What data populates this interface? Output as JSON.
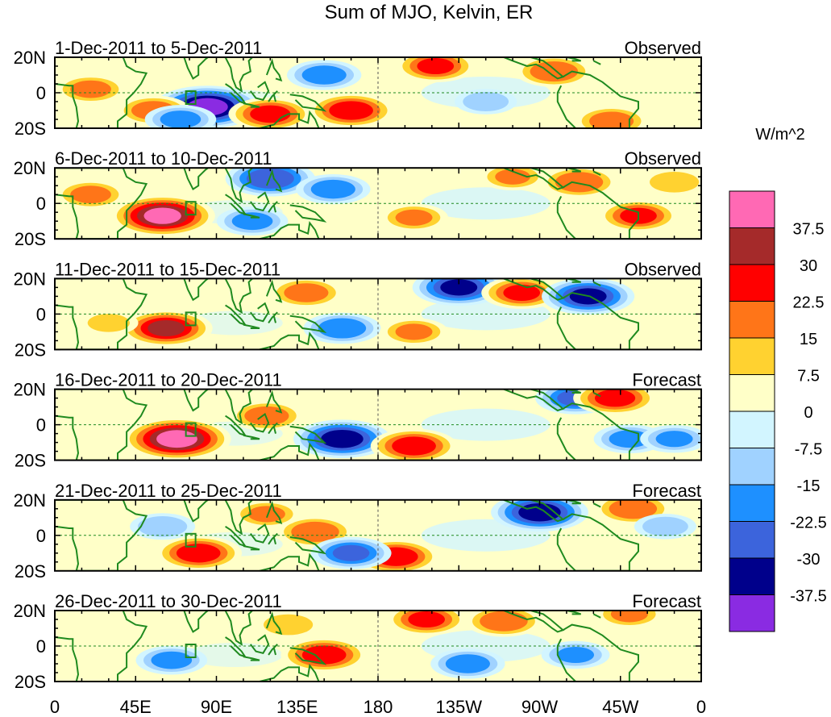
{
  "chart_data": {
    "type": "heatmap",
    "title": "Sum of MJO, Kelvin, ER",
    "units": "W/m^2",
    "x_ticks": [
      "0",
      "45E",
      "90E",
      "135E",
      "180",
      "135W",
      "90W",
      "45W",
      "0"
    ],
    "y_ticks": [
      "20N",
      "0",
      "20S"
    ],
    "xlim": [
      0,
      360
    ],
    "ylim": [
      -20,
      20
    ],
    "colorbar": {
      "labels": [
        "37.5",
        "30",
        "22.5",
        "15",
        "7.5",
        "0",
        "-7.5",
        "-15",
        "-22.5",
        "-30",
        "-37.5"
      ],
      "colors": [
        "#ff69b4",
        "#a52a2a",
        "#ff0000",
        "#ff7518",
        "#ffd230",
        "#ffffc8",
        "#d2f5ff",
        "#a0d2ff",
        "#1e90ff",
        "#3c64dc",
        "#00008b",
        "#8a2be2"
      ]
    },
    "panels": [
      {
        "period": "1-Dec-2011 to 5-Dec-2011",
        "status": "Observed",
        "anomalies": [
          {
            "lon": 85,
            "lat": -8,
            "value": -42
          },
          {
            "lon": 55,
            "lat": -10,
            "value": 20
          },
          {
            "lon": 20,
            "lat": 2,
            "value": 18
          },
          {
            "lon": 120,
            "lat": -12,
            "value": 26
          },
          {
            "lon": 165,
            "lat": -10,
            "value": 28
          },
          {
            "lon": 212,
            "lat": 15,
            "value": 24
          },
          {
            "lon": 278,
            "lat": 12,
            "value": 22
          },
          {
            "lon": 310,
            "lat": -16,
            "value": 20
          },
          {
            "lon": 150,
            "lat": 10,
            "value": -20
          },
          {
            "lon": 70,
            "lat": -15,
            "value": -18
          },
          {
            "lon": 240,
            "lat": -5,
            "value": -12
          }
        ]
      },
      {
        "period": "6-Dec-2011 to 10-Dec-2011",
        "status": "Observed",
        "anomalies": [
          {
            "lon": 60,
            "lat": -7,
            "value": 40
          },
          {
            "lon": 20,
            "lat": 5,
            "value": 18
          },
          {
            "lon": 120,
            "lat": 14,
            "value": -30
          },
          {
            "lon": 155,
            "lat": 8,
            "value": -20
          },
          {
            "lon": 110,
            "lat": -10,
            "value": -18
          },
          {
            "lon": 292,
            "lat": 12,
            "value": 22
          },
          {
            "lon": 325,
            "lat": -7,
            "value": 24
          },
          {
            "lon": 200,
            "lat": -8,
            "value": 16
          },
          {
            "lon": 255,
            "lat": 15,
            "value": 15
          },
          {
            "lon": 345,
            "lat": 12,
            "value": 14
          }
        ]
      },
      {
        "period": "11-Dec-2011 to 15-Dec-2011",
        "status": "Observed",
        "anomalies": [
          {
            "lon": 62,
            "lat": -8,
            "value": 32
          },
          {
            "lon": 225,
            "lat": 15,
            "value": -32
          },
          {
            "lon": 260,
            "lat": 12,
            "value": 24
          },
          {
            "lon": 297,
            "lat": 10,
            "value": -32
          },
          {
            "lon": 140,
            "lat": 12,
            "value": 20
          },
          {
            "lon": 160,
            "lat": -8,
            "value": -22
          },
          {
            "lon": 200,
            "lat": -10,
            "value": 16
          },
          {
            "lon": 30,
            "lat": -5,
            "value": 10
          }
        ]
      },
      {
        "period": "16-Dec-2011 to 20-Dec-2011",
        "status": "Forecast",
        "anomalies": [
          {
            "lon": 68,
            "lat": -8,
            "value": 42
          },
          {
            "lon": 160,
            "lat": -8,
            "value": -35
          },
          {
            "lon": 200,
            "lat": -12,
            "value": 28
          },
          {
            "lon": 290,
            "lat": 15,
            "value": -24
          },
          {
            "lon": 312,
            "lat": 15,
            "value": 26
          },
          {
            "lon": 118,
            "lat": 5,
            "value": 20
          },
          {
            "lon": 320,
            "lat": -8,
            "value": -18
          },
          {
            "lon": 345,
            "lat": -8,
            "value": -16
          }
        ]
      },
      {
        "period": "21-Dec-2011 to 25-Dec-2011",
        "status": "Forecast",
        "anomalies": [
          {
            "lon": 80,
            "lat": -10,
            "value": 28
          },
          {
            "lon": 145,
            "lat": 2,
            "value": 22
          },
          {
            "lon": 190,
            "lat": -12,
            "value": 28
          },
          {
            "lon": 165,
            "lat": -10,
            "value": -24
          },
          {
            "lon": 270,
            "lat": 13,
            "value": -35
          },
          {
            "lon": 322,
            "lat": 15,
            "value": 22
          },
          {
            "lon": 340,
            "lat": 5,
            "value": -12
          },
          {
            "lon": 118,
            "lat": 12,
            "value": 16
          },
          {
            "lon": 60,
            "lat": 5,
            "value": -14
          }
        ]
      },
      {
        "period": "26-Dec-2011 to 30-Dec-2011",
        "status": "Forecast",
        "anomalies": [
          {
            "lon": 150,
            "lat": -5,
            "value": 28
          },
          {
            "lon": 207,
            "lat": 15,
            "value": 24
          },
          {
            "lon": 250,
            "lat": 14,
            "value": 22
          },
          {
            "lon": 230,
            "lat": -10,
            "value": -20
          },
          {
            "lon": 65,
            "lat": -8,
            "value": -18
          },
          {
            "lon": 290,
            "lat": -5,
            "value": -16
          },
          {
            "lon": 320,
            "lat": 18,
            "value": 16
          },
          {
            "lon": 130,
            "lat": 12,
            "value": 14
          }
        ]
      }
    ]
  }
}
